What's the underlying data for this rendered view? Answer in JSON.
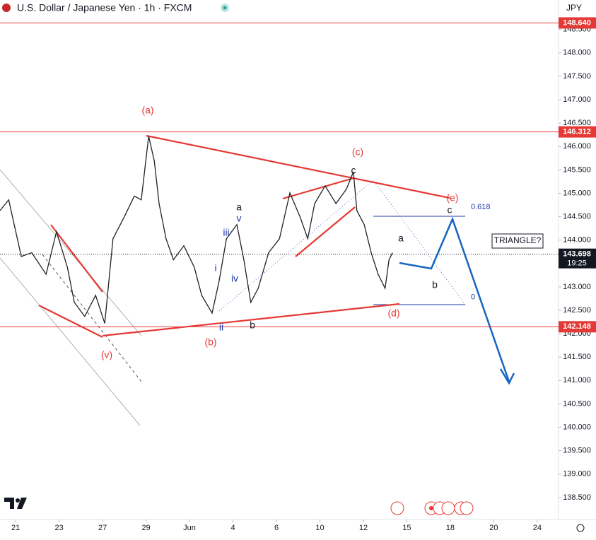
{
  "header": {
    "symbol": "U.S. Dollar / Japanese Yen · 1h · FXCM",
    "currency": "JPY"
  },
  "chart_data": {
    "type": "line",
    "x": [
      -0.36,
      -0.16,
      0.13,
      0.37,
      0.7,
      0.94,
      1.19,
      1.35,
      1.59,
      1.84,
      2.05,
      2.24,
      2.49,
      2.73,
      2.89,
      3.06,
      3.19,
      3.3,
      3.46,
      3.63,
      3.87,
      4.11,
      4.28,
      4.52,
      4.68,
      4.85,
      5.09,
      5.25,
      5.41,
      5.58,
      5.82,
      6.07,
      6.31,
      6.55,
      6.72,
      6.88,
      7.12,
      7.37,
      7.61,
      7.77,
      7.85,
      8.02,
      8.18,
      8.34,
      8.5,
      8.59,
      8.67
    ],
    "series": [
      {
        "name": "USDJPY",
        "color": "#222222",
        "values": [
          144.63,
          144.86,
          143.65,
          143.73,
          143.27,
          144.18,
          143.42,
          142.67,
          142.37,
          142.82,
          142.22,
          144.03,
          144.48,
          144.94,
          144.86,
          146.22,
          145.69,
          144.78,
          144.03,
          143.58,
          143.88,
          143.42,
          142.82,
          142.44,
          143.12,
          144.03,
          144.33,
          143.58,
          142.67,
          142.97,
          143.73,
          144.03,
          145.01,
          144.48,
          144.03,
          144.78,
          145.16,
          144.78,
          145.09,
          145.46,
          144.63,
          144.33,
          143.73,
          143.27,
          142.97,
          143.58,
          143.73
        ]
      }
    ],
    "xlim": [
      -0.36,
      12.49
    ],
    "xticks": [
      {
        "value": 0,
        "label": "21"
      },
      {
        "value": 1,
        "label": "23"
      },
      {
        "value": 2,
        "label": "27"
      },
      {
        "value": 3,
        "label": "29"
      },
      {
        "value": 4,
        "label": "Jun"
      },
      {
        "value": 5,
        "label": "4"
      },
      {
        "value": 6,
        "label": "6"
      },
      {
        "value": 7,
        "label": "10"
      },
      {
        "value": 8,
        "label": "12"
      },
      {
        "value": 9,
        "label": "15"
      },
      {
        "value": 10,
        "label": "18"
      },
      {
        "value": 11,
        "label": "20"
      },
      {
        "value": 12,
        "label": "24"
      }
    ],
    "ylim": [
      138.03,
      149.13
    ],
    "yticks": [
      {
        "value": 138.5,
        "label": "138.500"
      },
      {
        "value": 139,
        "label": "139.000"
      },
      {
        "value": 139.5,
        "label": "139.500"
      },
      {
        "value": 140,
        "label": "140.000"
      },
      {
        "value": 140.5,
        "label": "140.500"
      },
      {
        "value": 141,
        "label": "141.000"
      },
      {
        "value": 141.5,
        "label": "141.500"
      },
      {
        "value": 142,
        "label": "142.000"
      },
      {
        "value": 142.5,
        "label": "142.500"
      },
      {
        "value": 143,
        "label": "143.000"
      },
      {
        "value": 143.5,
        "label": "143.500"
      },
      {
        "value": 144,
        "label": "144.000"
      },
      {
        "value": 144.5,
        "label": "144.500"
      },
      {
        "value": 145,
        "label": "145.000"
      },
      {
        "value": 145.5,
        "label": "145.500"
      },
      {
        "value": 146,
        "label": "146.000"
      },
      {
        "value": 146.5,
        "label": "146.500"
      },
      {
        "value": 147,
        "label": "147.000"
      },
      {
        "value": 147.5,
        "label": "147.500"
      },
      {
        "value": 148,
        "label": "148.000"
      },
      {
        "value": 148.5,
        "label": "148.500"
      }
    ],
    "price_lines": [
      {
        "value": 148.64,
        "label": "148.640",
        "color": "#e53935"
      },
      {
        "value": 146.312,
        "label": "146.312",
        "color": "#e53935"
      },
      {
        "value": 142.148,
        "label": "142.148",
        "color": "#e53935"
      },
      {
        "value": 143.698,
        "label": "143.698",
        "color": "#131722"
      }
    ],
    "countdown": "19:25",
    "fib_labels": [
      {
        "value": 144.7,
        "label": "0.618"
      },
      {
        "value": 142.78,
        "label": "0"
      }
    ],
    "annotations": [
      {
        "text": "(a)",
        "color": "#e53935"
      },
      {
        "text": "(b)",
        "color": "#e53935"
      },
      {
        "text": "(c)",
        "color": "#e53935"
      },
      {
        "text": "(d)",
        "color": "#e53935"
      },
      {
        "text": "(e)",
        "color": "#e53935"
      },
      {
        "text": "(v)",
        "color": "#e53935"
      },
      {
        "text": "a",
        "color": "#131722"
      },
      {
        "text": "v",
        "color": "#1e3aa8"
      },
      {
        "text": "iii",
        "color": "#1e3aa8"
      },
      {
        "text": "i",
        "color": "#1e3aa8"
      },
      {
        "text": "iv",
        "color": "#1e3aa8"
      },
      {
        "text": "ii",
        "color": "#1e3aa8"
      },
      {
        "text": "b",
        "color": "#131722"
      },
      {
        "text": "c",
        "color": "#131722"
      },
      {
        "text": "a",
        "color": "#131722"
      },
      {
        "text": "b",
        "color": "#131722"
      },
      {
        "text": "c",
        "color": "#131722"
      }
    ],
    "note": "TRIANGLE?"
  }
}
